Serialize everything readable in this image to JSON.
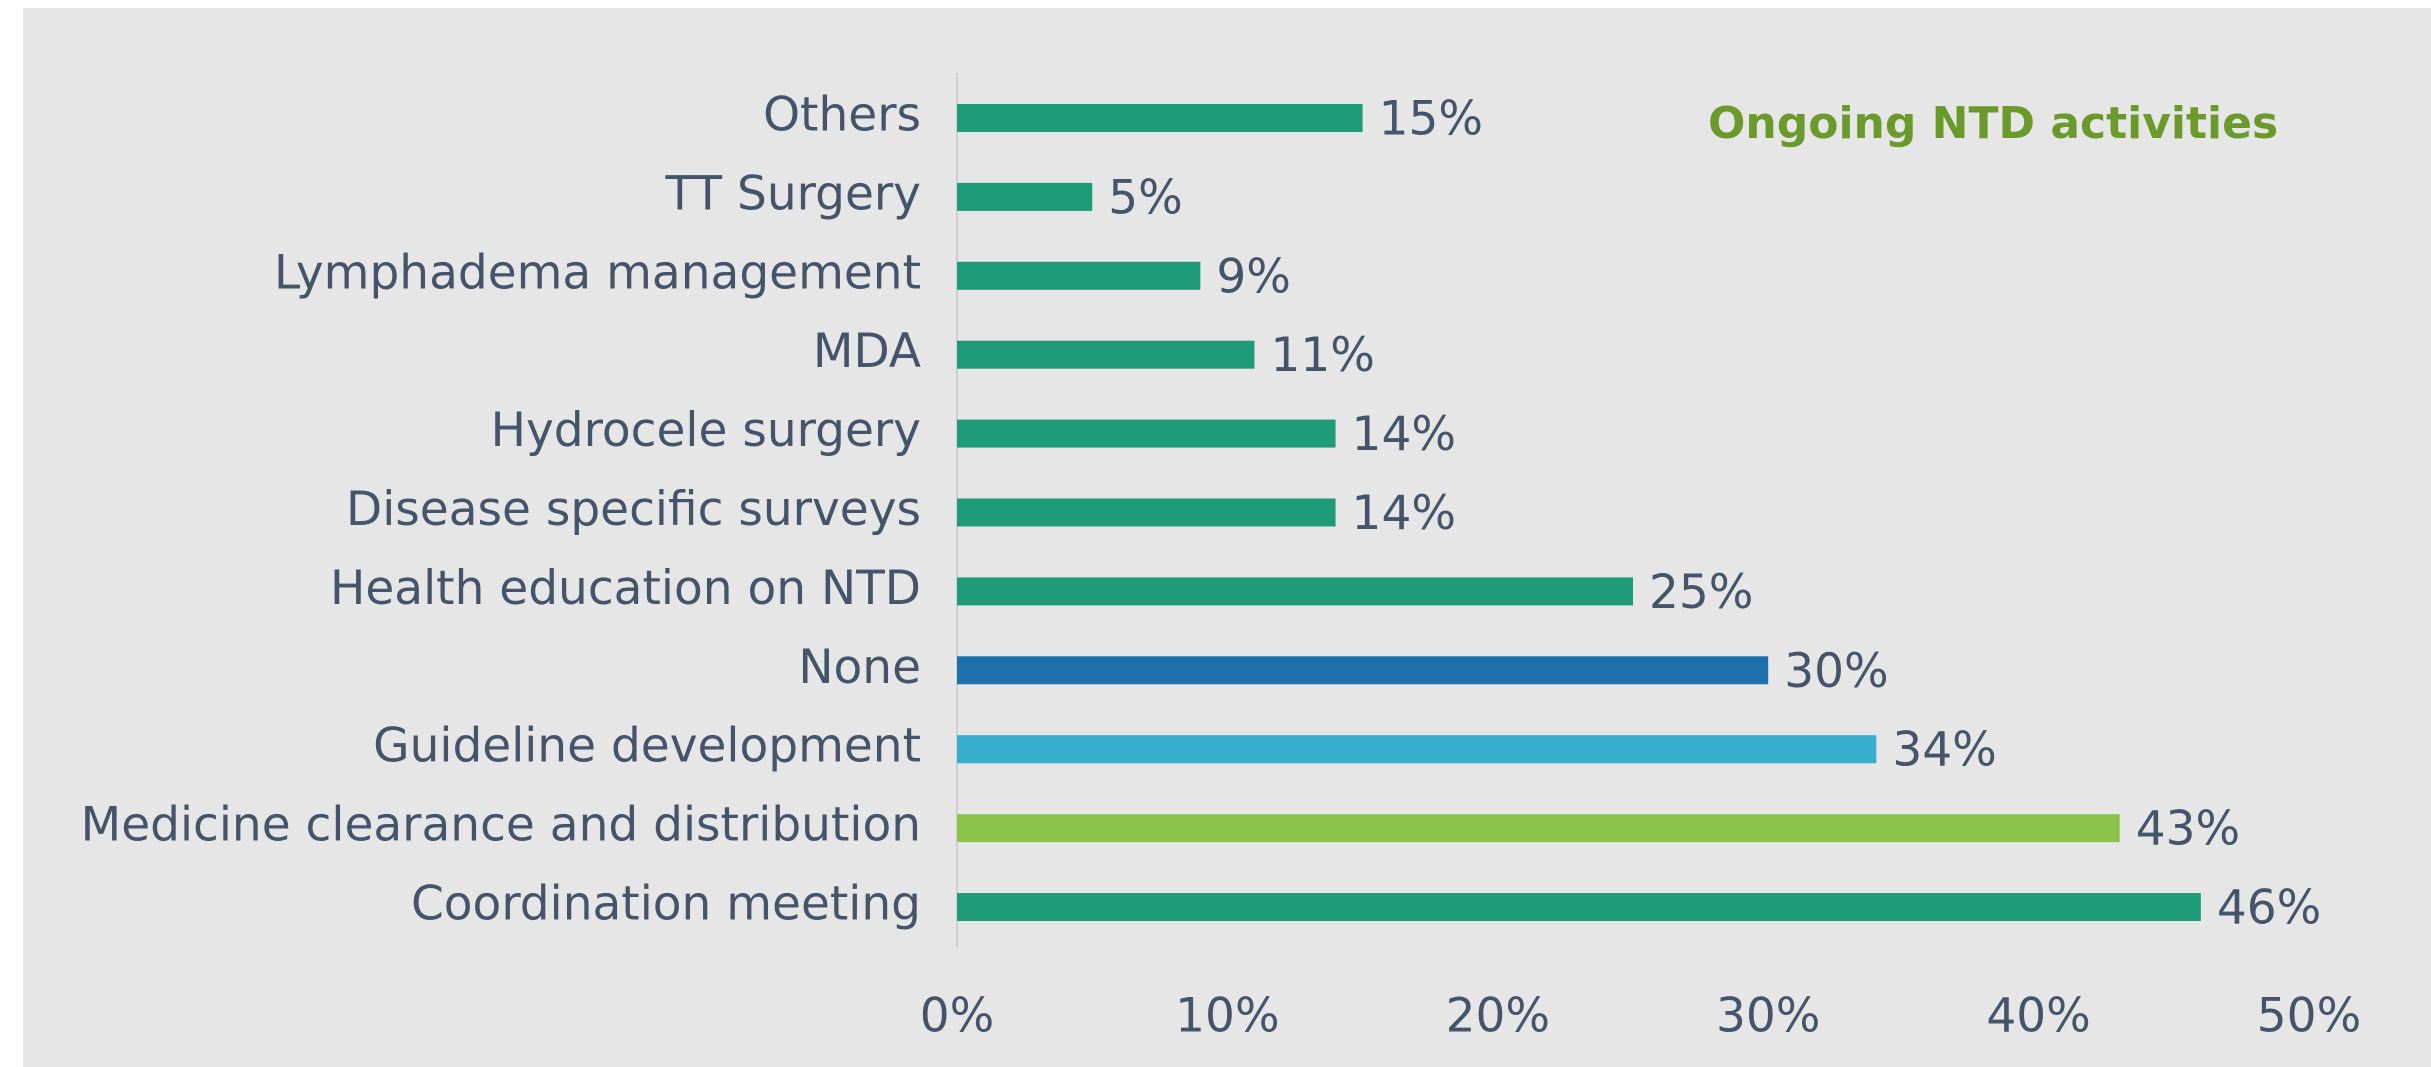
{
  "chart_data": {
    "type": "bar",
    "orientation": "horizontal",
    "annotation": "Ongoing NTD activities",
    "categories": [
      "Others",
      "TT Surgery",
      "Lymphadema management",
      "MDA",
      "Hydrocele surgery",
      "Disease specific surveys",
      "Health education on NTD",
      "None",
      "Guideline development",
      "Medicine clearance and distribution",
      "Coordination meeting"
    ],
    "values": [
      15,
      5,
      9,
      11,
      14,
      14,
      25,
      30,
      34,
      43,
      46
    ],
    "value_labels": [
      "15%",
      "5%",
      "9%",
      "11%",
      "14%",
      "14%",
      "25%",
      "30%",
      "34%",
      "43%",
      "46%"
    ],
    "colors": [
      "#1e9b78",
      "#1e9b78",
      "#1e9b78",
      "#1e9b78",
      "#1e9b78",
      "#1e9b78",
      "#1e9b78",
      "#1f6fad",
      "#38aece",
      "#8bc34a",
      "#1e9b78"
    ],
    "xlim": [
      0,
      50
    ],
    "xticks": [
      {
        "value": 0,
        "label": "0%"
      },
      {
        "value": 10,
        "label": "10%"
      },
      {
        "value": 20,
        "label": "20%"
      },
      {
        "value": 30,
        "label": "30%"
      },
      {
        "value": 40,
        "label": "40%"
      },
      {
        "value": 50,
        "label": "50%"
      }
    ],
    "grid": false
  }
}
